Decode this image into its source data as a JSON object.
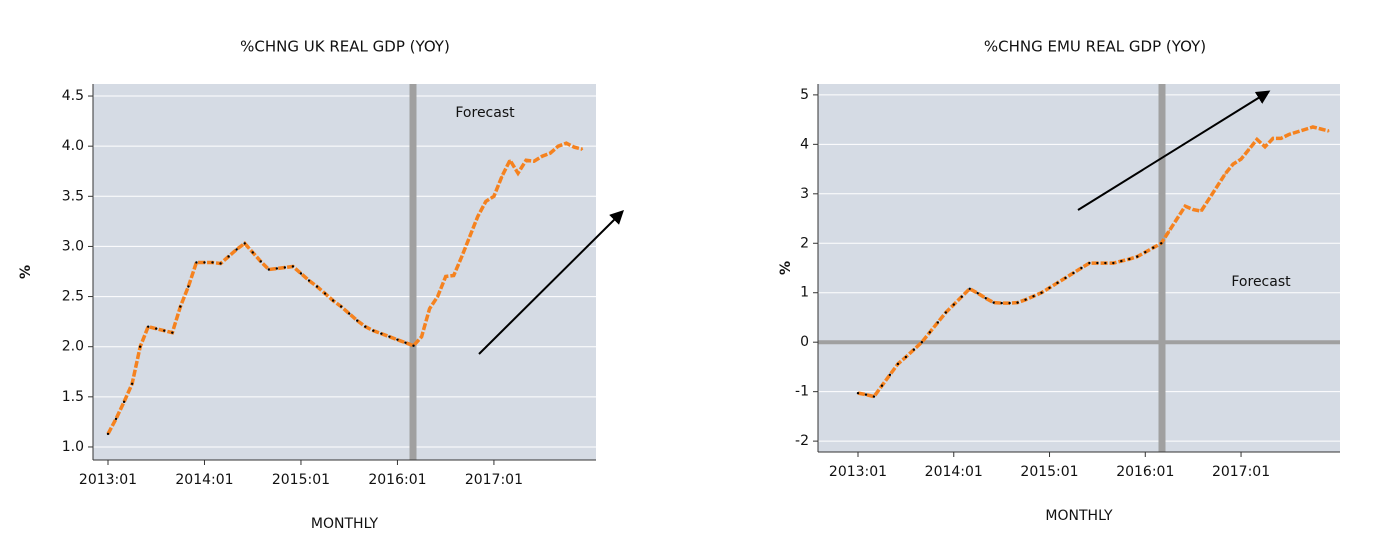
{
  "chart_data": [
    {
      "type": "line",
      "title": "%CHNG UK REAL GDP (YOY)",
      "xlabel": "MONTHLY",
      "ylabel": "%",
      "annotation": "Forecast",
      "categories": [
        "2013:01",
        null,
        null,
        null,
        null,
        null,
        null,
        null,
        null,
        null,
        null,
        null,
        "2014:01",
        null,
        null,
        null,
        null,
        null,
        null,
        null,
        null,
        null,
        null,
        null,
        "2015:01",
        null,
        null,
        null,
        null,
        null,
        null,
        null,
        null,
        null,
        null,
        null,
        "2016:01",
        null,
        null,
        null,
        null,
        null,
        null,
        null,
        null,
        null,
        null,
        null,
        "2017:01",
        null,
        null,
        null,
        null,
        null,
        null,
        null,
        null,
        null,
        null,
        null
      ],
      "values": [
        1.13,
        1.28,
        1.45,
        1.63,
        2.0,
        2.2,
        2.18,
        2.16,
        2.14,
        2.4,
        2.6,
        2.84,
        2.84,
        2.84,
        2.83,
        2.9,
        2.97,
        3.03,
        2.94,
        2.85,
        2.77,
        2.78,
        2.79,
        2.8,
        2.73,
        2.66,
        2.6,
        2.53,
        2.46,
        2.4,
        2.33,
        2.26,
        2.2,
        2.16,
        2.13,
        2.1,
        2.07,
        2.04,
        2.01,
        2.1,
        2.38,
        2.5,
        2.7,
        2.71,
        2.9,
        3.1,
        3.3,
        3.45,
        3.5,
        3.7,
        3.86,
        3.73,
        3.86,
        3.85,
        3.9,
        3.93,
        4.0,
        4.03,
        3.99,
        3.97
      ],
      "color": "#f5821f",
      "ylim": [
        0.87,
        4.62
      ],
      "yticks": [
        {
          "value": 1,
          "label": "1.0"
        },
        1.5,
        {
          "value": 2,
          "label": "2.0"
        },
        2.5,
        {
          "value": 3,
          "label": "3.0"
        },
        3.5,
        {
          "value": 4,
          "label": "4.0"
        },
        4.5
      ],
      "grid": true
    },
    {
      "type": "line",
      "title": "%CHNG EMU REAL GDP (YOY)",
      "xlabel": "MONTHLY",
      "ylabel": "%",
      "annotation": "Forecast",
      "categories": [
        "2013:01",
        null,
        null,
        null,
        null,
        null,
        null,
        null,
        null,
        null,
        null,
        null,
        "2014:01",
        null,
        null,
        null,
        null,
        null,
        null,
        null,
        null,
        null,
        null,
        null,
        "2015:01",
        null,
        null,
        null,
        null,
        null,
        null,
        null,
        null,
        null,
        null,
        null,
        "2016:01",
        null,
        null,
        null,
        null,
        null,
        null,
        null,
        null,
        null,
        null,
        null,
        "2017:01",
        null,
        null,
        null,
        null,
        null,
        null,
        null,
        null,
        null,
        null,
        null
      ],
      "values": [
        -1.03,
        -1.06,
        -1.1,
        -0.88,
        -0.66,
        -0.44,
        -0.3,
        -0.15,
        0.0,
        0.2,
        0.4,
        0.6,
        0.76,
        0.92,
        1.08,
        0.99,
        0.89,
        0.8,
        0.79,
        0.79,
        0.8,
        0.86,
        0.93,
        1.0,
        1.1,
        1.2,
        1.3,
        1.4,
        1.5,
        1.6,
        1.6,
        1.6,
        1.6,
        1.64,
        1.68,
        1.73,
        1.82,
        1.91,
        2.0,
        2.25,
        2.5,
        2.75,
        2.68,
        2.65,
        2.9,
        3.15,
        3.4,
        3.6,
        3.7,
        3.9,
        4.1,
        3.95,
        4.12,
        4.12,
        4.2,
        4.25,
        4.3,
        4.35,
        4.31,
        4.27
      ],
      "color": "#f5821f",
      "ylim": [
        -2.22,
        5.22
      ],
      "yticks": [
        -2,
        -1,
        0,
        1,
        2,
        3,
        4,
        5
      ],
      "grid": true
    }
  ]
}
